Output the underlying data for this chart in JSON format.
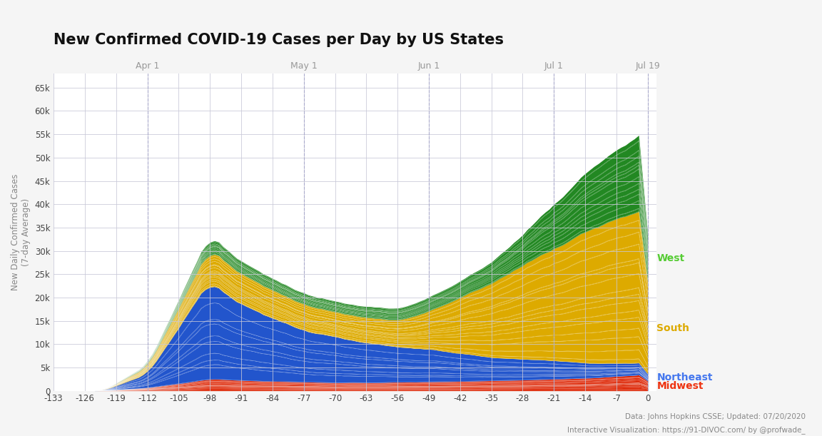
{
  "title": "New Confirmed COVID-19 Cases per Day by US States",
  "ylabel": "New Daily Confirmed Cases\n(7-day Average)",
  "x_ticks": [
    -133,
    -126,
    -119,
    -112,
    -105,
    -98,
    -91,
    -84,
    -77,
    -70,
    -63,
    -56,
    -49,
    -42,
    -35,
    -28,
    -21,
    -14,
    -7,
    0
  ],
  "date_labels": {
    "-112": "Apr 1",
    "-77": "May 1",
    "-49": "Jun 1",
    "-21": "Jul 1",
    "0": "Jul 19"
  },
  "ylim": [
    0,
    68000
  ],
  "y_ticks": [
    0,
    5000,
    10000,
    15000,
    20000,
    25000,
    30000,
    35000,
    40000,
    45000,
    50000,
    55000,
    60000,
    65000
  ],
  "midwest_color": "#dd2200",
  "northeast_color": "#2255cc",
  "south_color": "#ddaa00",
  "west_color": "#228822",
  "midwest_label_color": "#ee3311",
  "northeast_label_color": "#4477ee",
  "south_label_color": "#ddaa00",
  "west_label_color": "#55cc33",
  "background_color": "#f5f5f5",
  "plot_bg": "#ffffff",
  "grid_color": "#c8c8d8",
  "footnote": "Data: Johns Hopkins CSSE; Updated: 07/20/2020",
  "footnote2": "Interactive Visualization: https://91-DIVOC.com/ by @profwade_",
  "n_midwest": 12,
  "n_northeast": 9,
  "n_south": 16,
  "n_west": 13
}
